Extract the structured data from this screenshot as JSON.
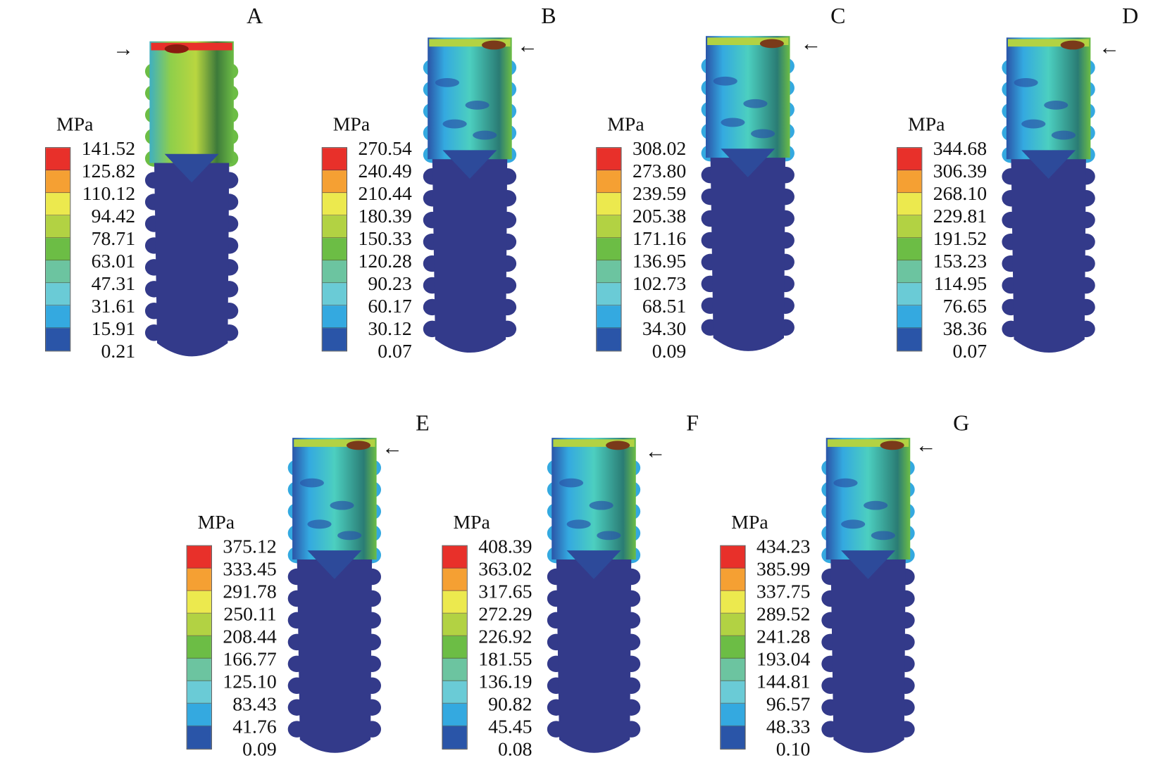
{
  "unit": "MPa",
  "band_colors": [
    "#e8302a",
    "#f5a033",
    "#ece94e",
    "#b2d243",
    "#6cbd45",
    "#6cc4a0",
    "#6acbd6",
    "#34a9e0",
    "#2a55a8"
  ],
  "implant_body_color": "#333a8a",
  "panels": [
    {
      "label": "A",
      "arrow": "→",
      "values": [
        "141.52",
        "125.82",
        "110.12",
        "94.42",
        "78.71",
        "63.01",
        "47.31",
        "31.61",
        "15.91",
        "0.21"
      ]
    },
    {
      "label": "B",
      "arrow": "←",
      "values": [
        "270.54",
        "240.49",
        "210.44",
        "180.39",
        "150.33",
        "120.28",
        "90.23",
        "60.17",
        "30.12",
        "0.07"
      ]
    },
    {
      "label": "C",
      "arrow": "←",
      "values": [
        "308.02",
        "273.80",
        "239.59",
        "205.38",
        "171.16",
        "136.95",
        "102.73",
        "68.51",
        "34.30",
        "0.09"
      ]
    },
    {
      "label": "D",
      "arrow": "←",
      "values": [
        "344.68",
        "306.39",
        "268.10",
        "229.81",
        "191.52",
        "153.23",
        "114.95",
        "76.65",
        "38.36",
        "0.07"
      ]
    },
    {
      "label": "E",
      "arrow": "←",
      "values": [
        "375.12",
        "333.45",
        "291.78",
        "250.11",
        "208.44",
        "166.77",
        "125.10",
        "83.43",
        "41.76",
        "0.09"
      ]
    },
    {
      "label": "F",
      "arrow": "←",
      "values": [
        "408.39",
        "363.02",
        "317.65",
        "272.29",
        "226.92",
        "181.55",
        "136.19",
        "90.82",
        "45.45",
        "0.08"
      ]
    },
    {
      "label": "G",
      "arrow": "←",
      "values": [
        "434.23",
        "385.99",
        "337.75",
        "289.52",
        "241.28",
        "193.04",
        "144.81",
        "96.57",
        "48.33",
        "0.10"
      ]
    }
  ]
}
